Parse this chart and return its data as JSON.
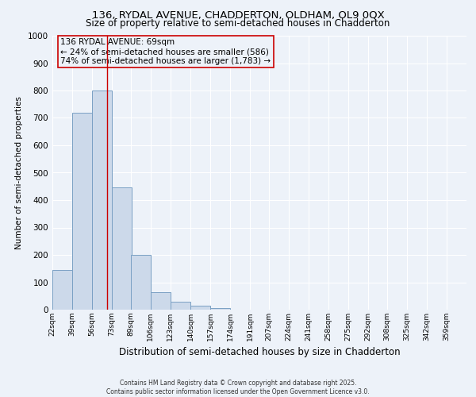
{
  "title_line1": "136, RYDAL AVENUE, CHADDERTON, OLDHAM, OL9 0QX",
  "title_line2": "Size of property relative to semi-detached houses in Chadderton",
  "xlabel": "Distribution of semi-detached houses by size in Chadderton",
  "ylabel": "Number of semi-detached properties",
  "annotation_title": "136 RYDAL AVENUE: 69sqm",
  "annotation_line1": "← 24% of semi-detached houses are smaller (586)",
  "annotation_line2": "74% of semi-detached houses are larger (1,783) →",
  "footnote1": "Contains HM Land Registry data © Crown copyright and database right 2025.",
  "footnote2": "Contains public sector information licensed under the Open Government Licence v3.0.",
  "bar_left_edges": [
    22,
    39,
    56,
    73,
    89,
    106,
    123,
    140,
    157,
    174,
    191,
    207,
    224,
    241,
    258,
    275,
    292,
    308,
    325,
    342
  ],
  "bar_heights": [
    145,
    720,
    800,
    445,
    200,
    65,
    30,
    15,
    5,
    0,
    0,
    0,
    0,
    0,
    0,
    0,
    0,
    0,
    0,
    0
  ],
  "bin_width": 17,
  "tick_labels": [
    "22sqm",
    "39sqm",
    "56sqm",
    "73sqm",
    "89sqm",
    "106sqm",
    "123sqm",
    "140sqm",
    "157sqm",
    "174sqm",
    "191sqm",
    "207sqm",
    "224sqm",
    "241sqm",
    "258sqm",
    "275sqm",
    "292sqm",
    "308sqm",
    "325sqm",
    "342sqm",
    "359sqm"
  ],
  "tick_positions": [
    22,
    39,
    56,
    73,
    89,
    106,
    123,
    140,
    157,
    174,
    191,
    207,
    224,
    241,
    258,
    275,
    292,
    308,
    325,
    342,
    359
  ],
  "bar_color": "#ccd9ea",
  "bar_edge_color": "#7aa0c4",
  "vline_color": "#cc0000",
  "vline_x": 69,
  "annotation_box_edge_color": "#cc0000",
  "ylim": [
    0,
    1000
  ],
  "xlim": [
    22,
    376
  ],
  "yticks": [
    0,
    100,
    200,
    300,
    400,
    500,
    600,
    700,
    800,
    900,
    1000
  ],
  "background_color": "#edf2f9",
  "grid_color": "#ffffff",
  "title_fontsize": 9.5,
  "subtitle_fontsize": 8.5,
  "xlabel_fontsize": 8.5,
  "ylabel_fontsize": 7.5,
  "tick_fontsize": 6.5,
  "annotation_fontsize": 7.5,
  "footnote_fontsize": 5.5
}
